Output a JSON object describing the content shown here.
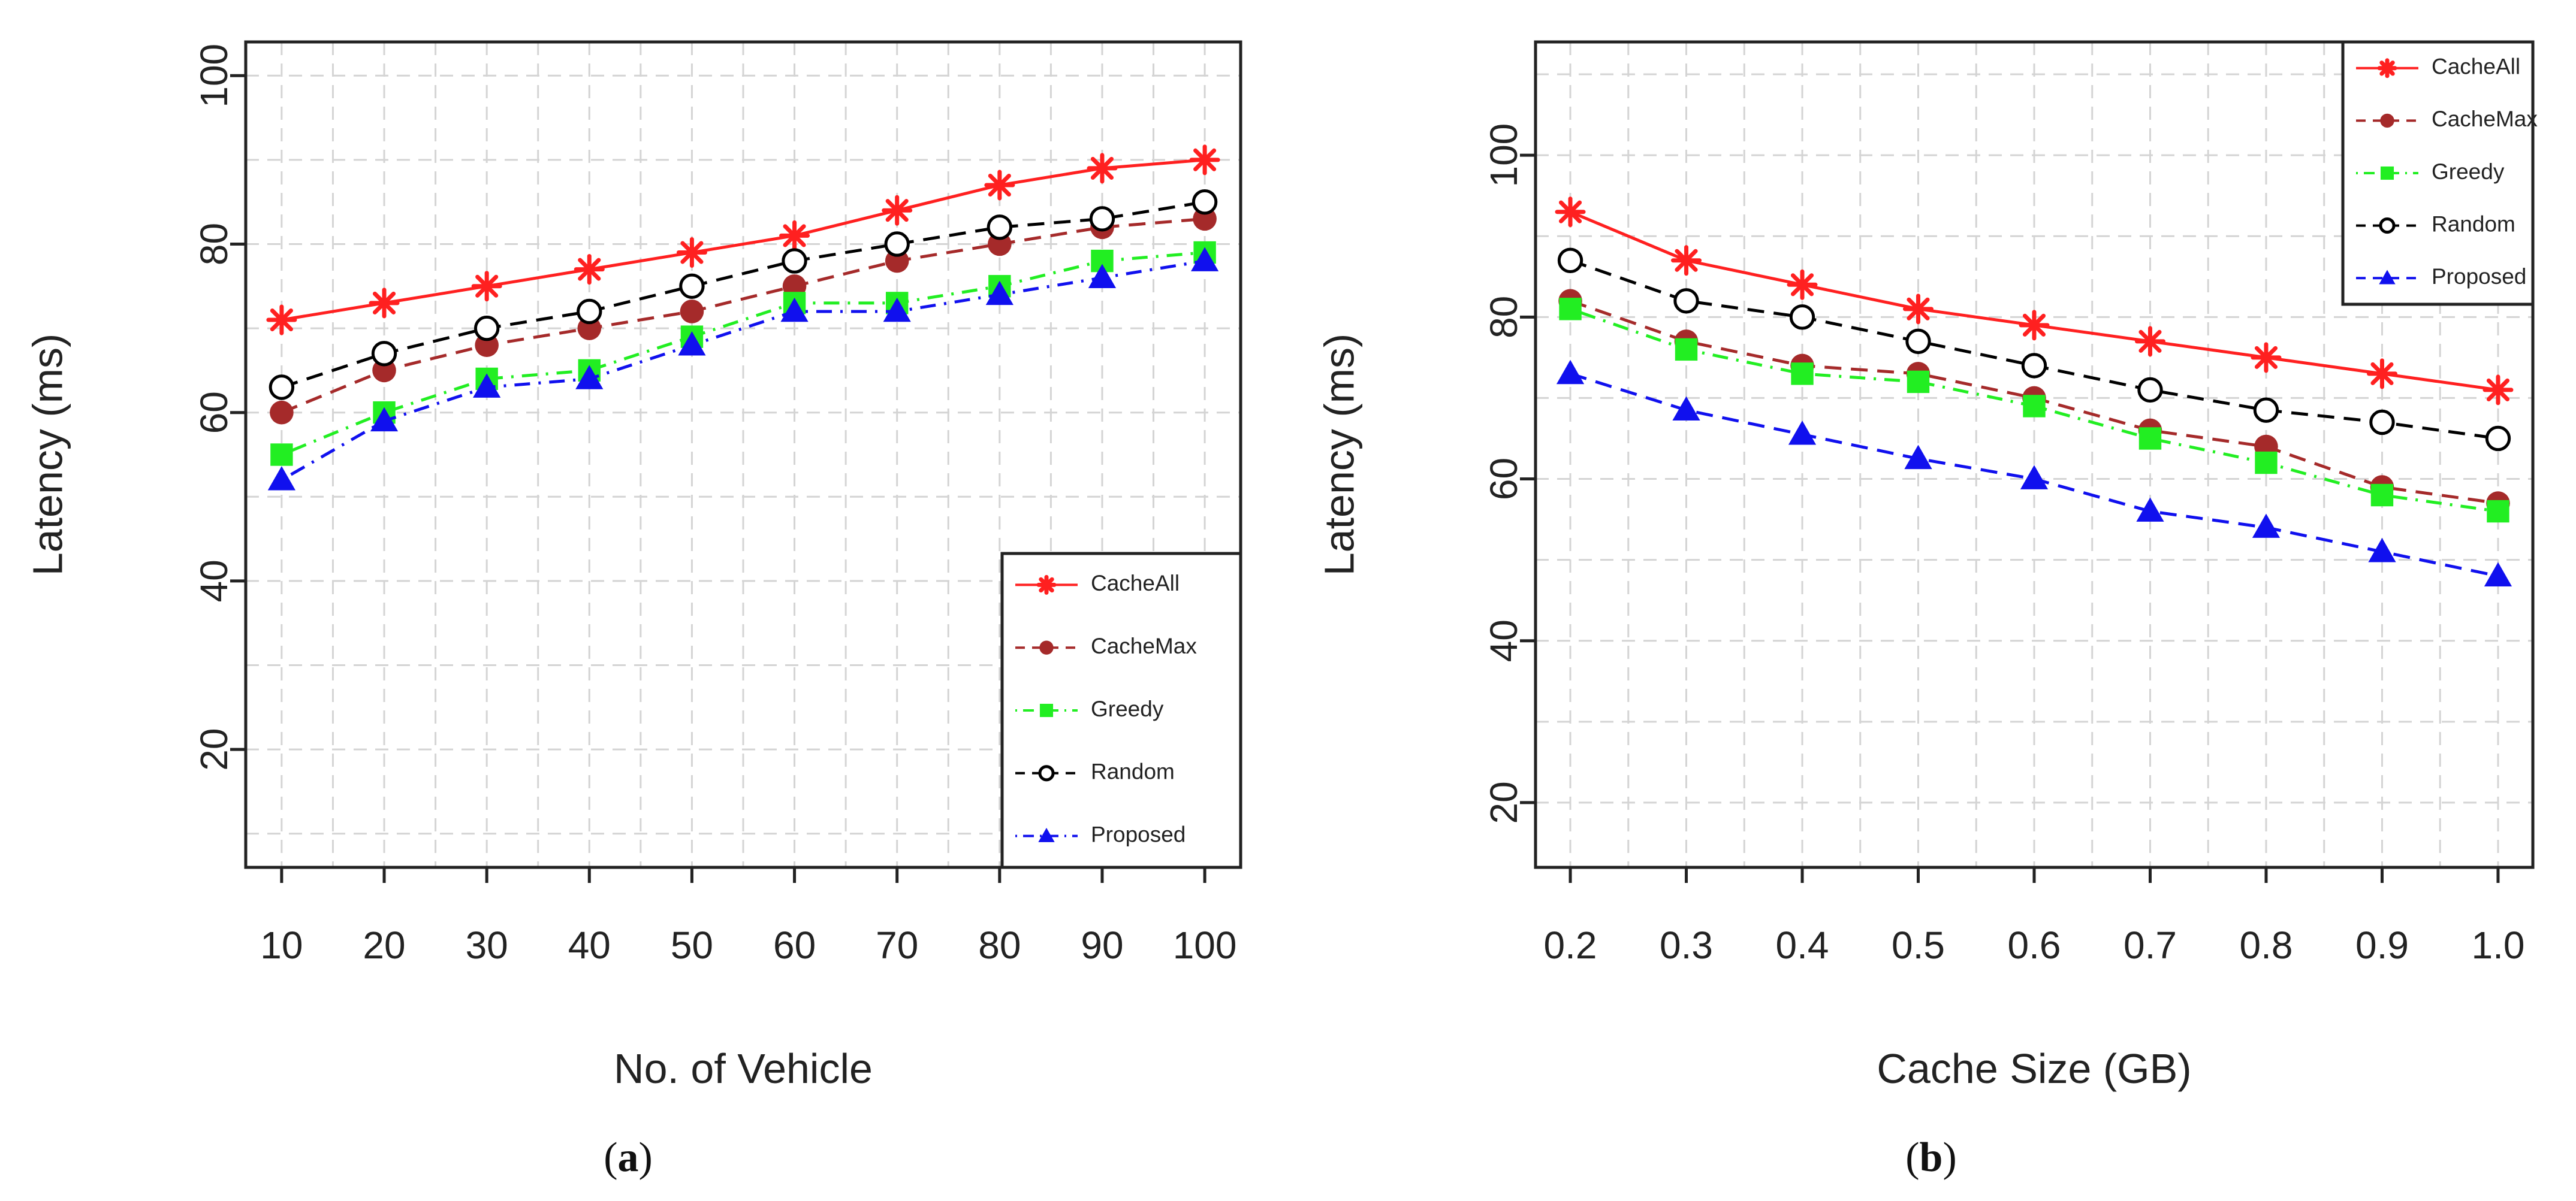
{
  "chart_data": [
    {
      "id": "a",
      "type": "line",
      "caption": "(a)",
      "caption_letter": "a",
      "xlabel": "No. of Vehicle",
      "ylabel": "Latency (ms)",
      "x": [
        10,
        20,
        30,
        40,
        50,
        60,
        70,
        80,
        90,
        100
      ],
      "x_tick_labels": [
        "10",
        "20",
        "30",
        "40",
        "50",
        "60",
        "70",
        "80",
        "90",
        "100"
      ],
      "y_ticks": [
        20,
        40,
        60,
        80,
        100
      ],
      "xlim": [
        6.5,
        103.5
      ],
      "ylim": [
        6,
        104
      ],
      "grid": true,
      "legend_position": "bottom-right",
      "series": [
        {
          "name": "CacheAll",
          "color": "#ff2020",
          "marker": "asterisk",
          "dash": "none",
          "values": [
            71,
            73,
            75,
            77,
            79,
            81,
            84,
            87,
            89,
            90
          ]
        },
        {
          "name": "CacheMax",
          "color": "#a52a2a",
          "marker": "circle-filled",
          "dash": "dashed",
          "values": [
            60,
            65,
            68,
            70,
            72,
            75,
            78,
            80,
            82,
            83
          ]
        },
        {
          "name": "Greedy",
          "color": "#22ee22",
          "marker": "square",
          "dash": "dotdash",
          "values": [
            55,
            60,
            64,
            65,
            69,
            73,
            73,
            75,
            78,
            79
          ]
        },
        {
          "name": "Random",
          "color": "#000000",
          "marker": "circle-open",
          "dash": "dashed",
          "values": [
            63,
            67,
            70,
            72,
            75,
            78,
            80,
            82,
            83,
            85
          ]
        },
        {
          "name": "Proposed",
          "color": "#1010ee",
          "marker": "triangle",
          "dash": "dotdash",
          "values": [
            52,
            59,
            63,
            64,
            68,
            72,
            72,
            74,
            76,
            78
          ]
        }
      ]
    },
    {
      "id": "b",
      "type": "line",
      "caption": "(b)",
      "caption_letter": "b",
      "xlabel": "Cache Size (GB)",
      "ylabel": "Latency (ms)",
      "x": [
        0.2,
        0.3,
        0.4,
        0.5,
        0.6,
        0.7,
        0.8,
        0.9,
        1.0
      ],
      "x_tick_labels": [
        "0.2",
        "0.3",
        "0.4",
        "0.5",
        "0.6",
        "0.7",
        "0.8",
        "0.9",
        "1.0"
      ],
      "y_ticks": [
        20,
        40,
        60,
        80,
        100
      ],
      "xlim": [
        0.17,
        1.03
      ],
      "ylim": [
        12,
        114
      ],
      "grid": true,
      "legend_position": "top-right",
      "series": [
        {
          "name": "CacheAll",
          "color": "#ff2020",
          "marker": "asterisk",
          "dash": "none",
          "values": [
            93,
            87,
            84,
            81,
            79,
            77,
            75,
            73,
            71
          ]
        },
        {
          "name": "CacheMax",
          "color": "#a52a2a",
          "marker": "circle-filled",
          "dash": "dashed",
          "values": [
            82,
            77,
            74,
            73,
            70,
            66,
            64,
            59,
            57
          ]
        },
        {
          "name": "Greedy",
          "color": "#22ee22",
          "marker": "square",
          "dash": "dotdash",
          "values": [
            81,
            76,
            73,
            72,
            69,
            65,
            62,
            58,
            56
          ]
        },
        {
          "name": "Random",
          "color": "#000000",
          "marker": "circle-open",
          "dash": "dashed",
          "values": [
            87,
            82,
            80,
            77,
            74,
            71,
            68.5,
            67,
            65
          ]
        },
        {
          "name": "Proposed",
          "color": "#1010ee",
          "marker": "triangle",
          "dash": "dashed",
          "values": [
            73,
            68.5,
            65.5,
            62.5,
            60,
            56,
            54,
            51,
            48
          ]
        }
      ]
    }
  ]
}
